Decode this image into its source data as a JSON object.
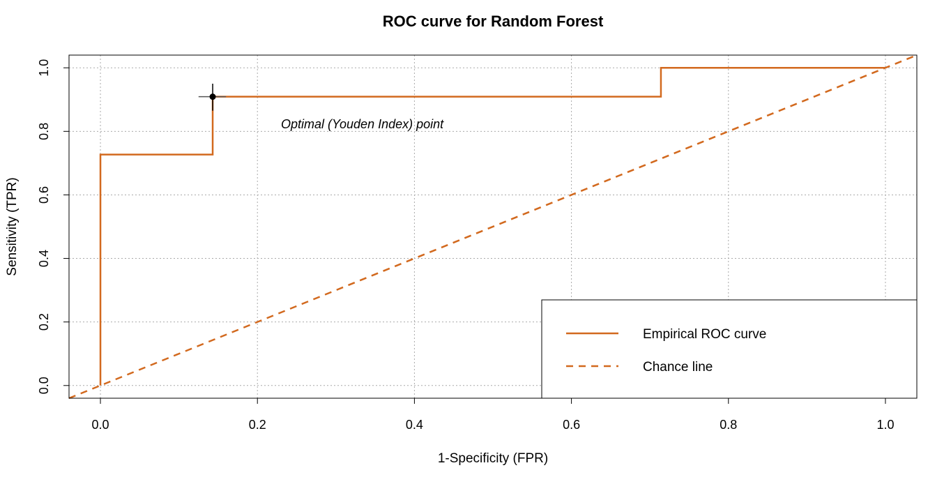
{
  "chart_data": {
    "type": "line",
    "title": "ROC curve for Random Forest",
    "xlabel": "1-Specificity (FPR)",
    "ylabel": "Sensitivity (TPR)",
    "xlim": [
      -0.04,
      1.04
    ],
    "ylim": [
      -0.04,
      1.04
    ],
    "xticks": [
      0.0,
      0.2,
      0.4,
      0.6,
      0.8,
      1.0
    ],
    "xtick_labels": [
      "0.0",
      "0.2",
      "0.4",
      "0.6",
      "0.8",
      "1.0"
    ],
    "yticks": [
      0.0,
      0.2,
      0.4,
      0.6,
      0.8,
      1.0
    ],
    "ytick_labels": [
      "0.0",
      "0.2",
      "0.4",
      "0.6",
      "0.8",
      "1.0"
    ],
    "grid": true,
    "series": [
      {
        "name": "Empirical ROC curve",
        "style": "solid",
        "color": "#D2691E",
        "x": [
          0.0,
          0.0,
          0.143,
          0.143,
          0.714,
          0.714,
          1.0
        ],
        "y": [
          0.0,
          0.727,
          0.727,
          0.909,
          0.909,
          1.0,
          1.0
        ]
      },
      {
        "name": "Chance line",
        "style": "dashed",
        "color": "#D2691E",
        "x": [
          -0.04,
          1.04
        ],
        "y": [
          -0.04,
          1.04
        ]
      }
    ],
    "optimal_point": {
      "x": 0.143,
      "y": 0.909,
      "x_error": [
        0.125,
        0.16
      ],
      "y_error": [
        0.865,
        0.95
      ],
      "color": "#000000"
    },
    "annotations": [
      {
        "text": "Optimal (Youden Index) point",
        "x": 0.23,
        "y": 0.81
      }
    ],
    "legend": {
      "position": "bottom-right",
      "entries": [
        {
          "label": "Empirical ROC curve",
          "style": "solid"
        },
        {
          "label": "Chance line",
          "style": "dashed"
        }
      ]
    }
  }
}
